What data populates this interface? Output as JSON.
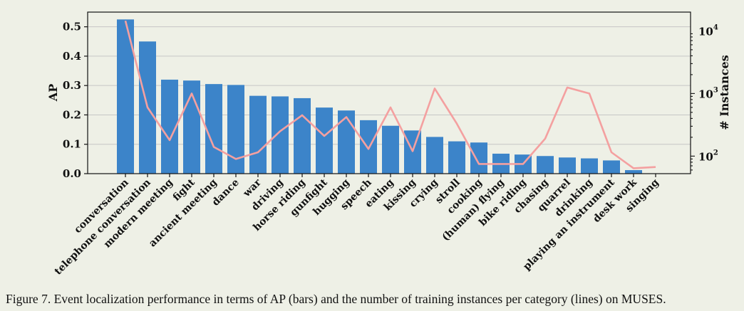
{
  "chart_data": {
    "type": "bar",
    "categories": [
      "conversation",
      "telephone conversation",
      "modern meeting",
      "fight",
      "ancient meeting",
      "dance",
      "war",
      "driving",
      "horse riding",
      "gunfight",
      "hugging",
      "speech",
      "eating",
      "kissing",
      "crying",
      "stroll",
      "cooking",
      "(human) flying",
      "bike riding",
      "chasing",
      "quarrel",
      "drinking",
      "playing an instrument",
      "desk work",
      "singing"
    ],
    "series": [
      {
        "name": "AP",
        "type": "bar",
        "axis": "left",
        "color": "#3c84c9",
        "values": [
          0.525,
          0.45,
          0.32,
          0.317,
          0.305,
          0.302,
          0.265,
          0.263,
          0.257,
          0.225,
          0.215,
          0.182,
          0.163,
          0.147,
          0.125,
          0.11,
          0.106,
          0.068,
          0.065,
          0.06,
          0.055,
          0.052,
          0.045,
          0.012,
          0.0
        ]
      },
      {
        "name": "# Instances",
        "type": "line",
        "axis": "right",
        "color": "#f4a0a0",
        "values": [
          14500,
          600,
          180,
          1000,
          140,
          90,
          115,
          250,
          450,
          210,
          420,
          130,
          600,
          120,
          1200,
          330,
          75,
          75,
          75,
          190,
          1250,
          1000,
          115,
          64,
          67
        ]
      }
    ],
    "ylabel": "AP",
    "y2label": "# Instances",
    "ylim": [
      0,
      0.55
    ],
    "yticks": [
      "0.0",
      "0.1",
      "0.2",
      "0.3",
      "0.4",
      "0.5"
    ],
    "y2lim_log10": [
      1.72,
      4.3
    ],
    "y2ticks": [
      {
        "base": "10",
        "exp": "2"
      },
      {
        "base": "10",
        "exp": "3"
      },
      {
        "base": "10",
        "exp": "4"
      }
    ],
    "grid": true
  },
  "caption": "Figure 7. Event localization performance in terms of AP (bars) and the number of training instances per category (lines) on MUSES."
}
